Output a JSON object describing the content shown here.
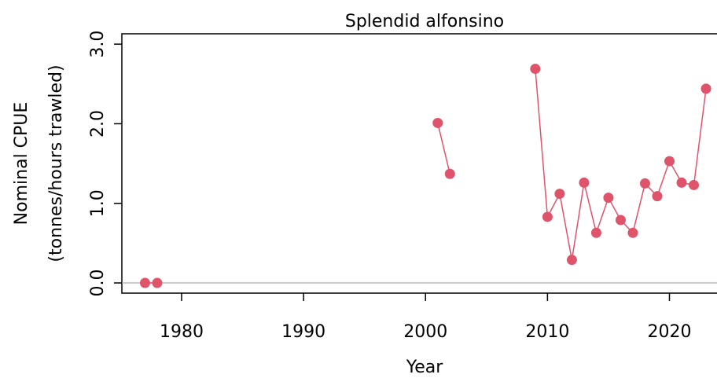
{
  "chart_data": {
    "type": "line",
    "title": "Splendid alfonsino",
    "xlabel": "Year",
    "ylabel": [
      "Nominal CPUE",
      "(tonnes/hours trawled)"
    ],
    "x": [
      1977,
      1978,
      1979,
      1980,
      1981,
      1982,
      1983,
      1984,
      1985,
      1986,
      1987,
      1988,
      1989,
      1990,
      1991,
      1992,
      1993,
      1994,
      1995,
      1996,
      1997,
      1998,
      1999,
      2000,
      2001,
      2002,
      2003,
      2004,
      2005,
      2006,
      2007,
      2008,
      2009,
      2010,
      2011,
      2012,
      2013,
      2014,
      2015,
      2016,
      2017,
      2018,
      2019,
      2020,
      2021,
      2022,
      2023
    ],
    "series": [
      {
        "color": "#df536b",
        "values": [
          0,
          0,
          null,
          null,
          null,
          null,
          null,
          null,
          null,
          null,
          null,
          null,
          null,
          null,
          null,
          null,
          null,
          null,
          null,
          null,
          null,
          null,
          null,
          null,
          2.01,
          1.37,
          null,
          null,
          null,
          null,
          null,
          null,
          2.69,
          0.83,
          1.12,
          0.29,
          1.26,
          0.63,
          1.07,
          0.79,
          0.63,
          1.25,
          1.09,
          1.53,
          1.26,
          1.23,
          2.44
        ]
      }
    ],
    "xlim": [
      1975.1,
      2023.9
    ],
    "ylim": [
      -0.128,
      3.13
    ],
    "xticks": [
      1980,
      1990,
      2000,
      2010,
      2020
    ],
    "yticks": [
      {
        "value": 0,
        "label": "0.0"
      },
      {
        "value": 1,
        "label": "1.0"
      },
      {
        "value": 2,
        "label": "2.0"
      },
      {
        "value": 3,
        "label": "3.0"
      }
    ],
    "zero_line": true
  }
}
